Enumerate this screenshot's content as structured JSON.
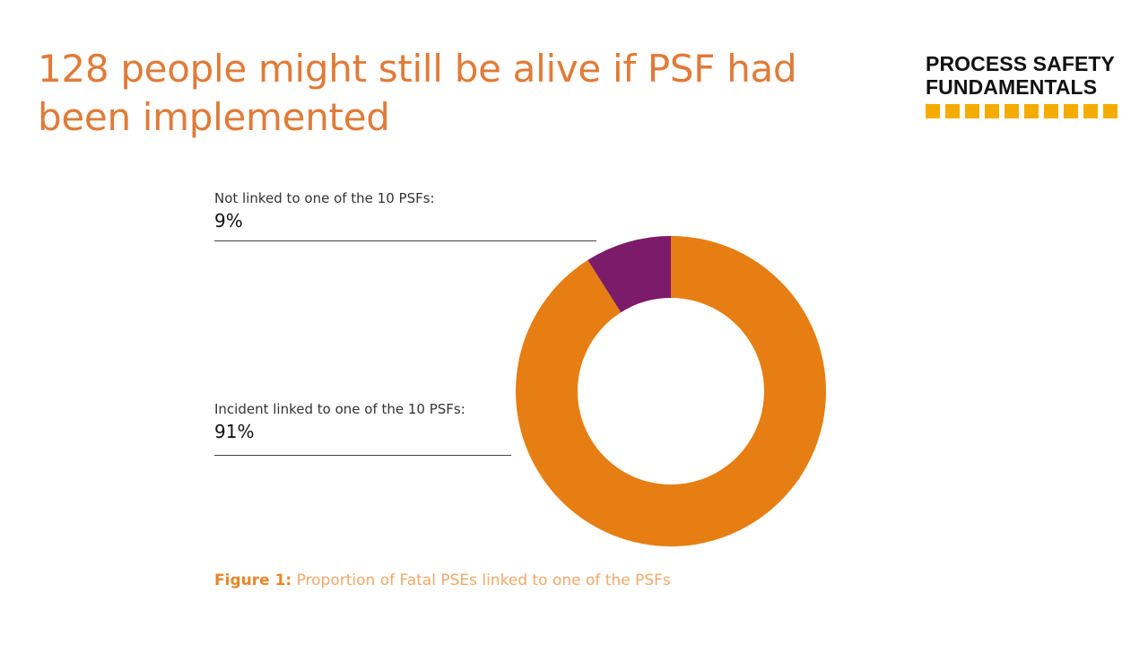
{
  "slide": {
    "title": "128 people might still be alive if PSF had been implemented"
  },
  "logo": {
    "line1": "PROCESS SAFETY",
    "line2": "FUNDAMENTALS",
    "square_count": 10,
    "square_color": "#F5AC00"
  },
  "annotations": {
    "not_linked": {
      "label": "Not linked to one of the 10 PSFs:",
      "value": "9%"
    },
    "linked": {
      "label": "Incident linked to one of the 10 PSFs:",
      "value": "91%"
    }
  },
  "caption": {
    "label": "Figure 1:",
    "text": " Proportion of Fatal PSEs linked to one of the PSFs",
    "label_color": "#E8852A",
    "text_color": "#F0A86A"
  },
  "colors": {
    "title": "#E07B39",
    "orange": "#E67E13",
    "purple": "#7B1B69"
  },
  "chart_data": {
    "type": "pie",
    "variant": "donut",
    "title": "",
    "slices": [
      {
        "label": "Not linked to one of the 10 PSFs:",
        "value": 9,
        "color": "#7B1B69"
      },
      {
        "label": "Incident linked to one of the 10 PSFs:",
        "value": 91,
        "color": "#E67E13"
      }
    ],
    "start": "top",
    "direction": "counterclockwise-for-first-slice"
  }
}
